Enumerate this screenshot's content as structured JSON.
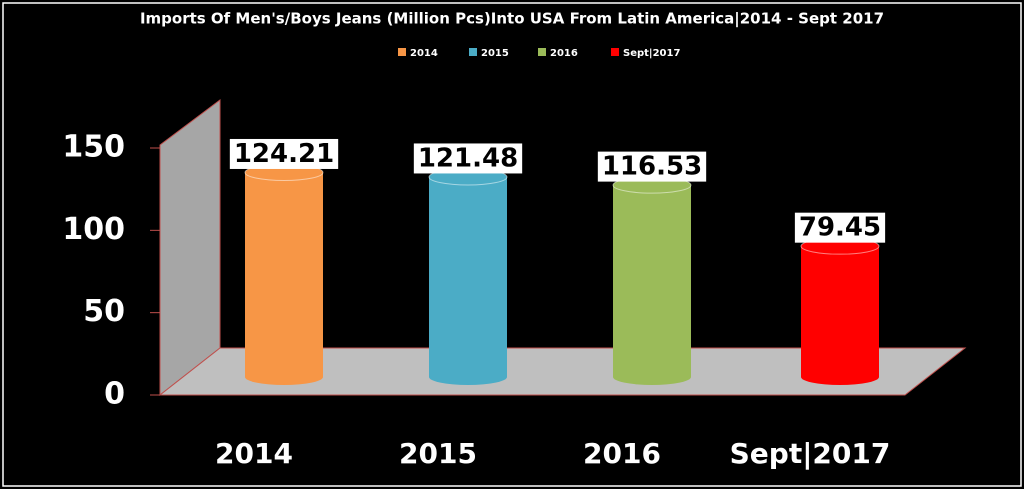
{
  "chart_data": {
    "type": "bar",
    "title": "Imports Of Men's/Boys Jeans (Million Pcs)Into USA From Latin America|2014 - Sept 2017",
    "categories": [
      "2014",
      "2015",
      "2016",
      "Sept|2017"
    ],
    "values": [
      124.21,
      121.48,
      116.53,
      79.45
    ],
    "colors": [
      "#f79646",
      "#4bacc6",
      "#9bbb59",
      "#ff0000"
    ],
    "ylim": [
      0,
      150
    ],
    "yticks": [
      0,
      50,
      100,
      150
    ],
    "legend": "top"
  }
}
